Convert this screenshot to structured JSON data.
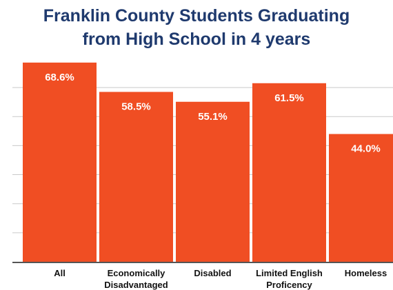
{
  "chart_data": {
    "type": "bar",
    "title_lines": [
      "Franklin County Students Graduating",
      "from High School in 4 years"
    ],
    "categories": [
      [
        "All"
      ],
      [
        "Economically",
        "Disadvantaged"
      ],
      [
        "Disabled"
      ],
      [
        "Limited English",
        "Proficency"
      ],
      [
        "Homeless"
      ]
    ],
    "values": [
      68.6,
      58.5,
      55.1,
      61.5,
      44.0
    ],
    "value_labels": [
      "68.6%",
      "58.5%",
      "55.1%",
      "61.5%",
      "44.0%"
    ],
    "xlabel": "",
    "ylabel": "",
    "ylim": [
      0,
      70
    ],
    "y_gridlines": [
      10,
      20,
      30,
      40,
      50,
      60
    ],
    "y_tick_labels_shown": false,
    "grid": true,
    "legend": "none",
    "colors": {
      "bar": "#f04e23",
      "title": "#1f3a6e",
      "grid": "#c9c9c9",
      "axis": "#555555",
      "value_text": "#ffffff",
      "category_text": "#111111"
    }
  }
}
